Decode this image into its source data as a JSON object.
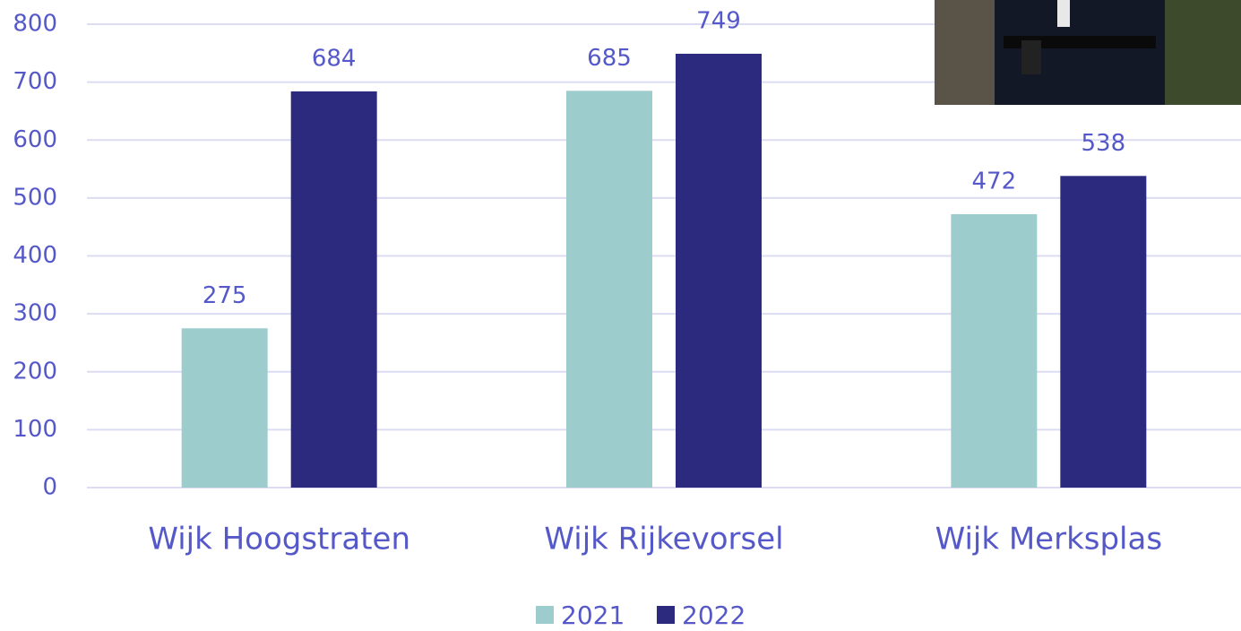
{
  "chart_data": {
    "type": "bar",
    "categories": [
      "Wijk Hoogstraten",
      "Wijk Rijkevorsel",
      "Wijk Merksplas"
    ],
    "series": [
      {
        "name": "2021",
        "color": "#9dcccd",
        "values": [
          275,
          685,
          472
        ]
      },
      {
        "name": "2022",
        "color": "#2b2a7e",
        "values": [
          684,
          749,
          538
        ]
      }
    ],
    "ylim": [
      0,
      800
    ],
    "yticks": [
      0,
      100,
      200,
      300,
      400,
      500,
      600,
      700,
      800
    ],
    "grid": true,
    "legend": "bottom"
  }
}
